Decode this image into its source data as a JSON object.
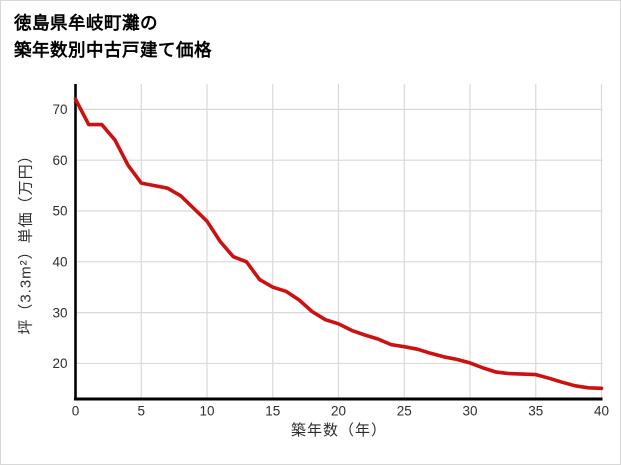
{
  "page": {
    "background": "#ffffff",
    "border_color": "#d8d8d8"
  },
  "chart_data": {
    "type": "line",
    "title": "徳島県牟岐町灘の 築年数別中古戸建て価格",
    "title_lines": [
      "徳島県牟岐町灘の",
      "築年数別中古戸建て価格"
    ],
    "xlabel": "築年数（年）",
    "ylabel": "坪（3.3m²）単価（万円）",
    "x": [
      0,
      1,
      2,
      3,
      4,
      5,
      6,
      7,
      8,
      9,
      10,
      11,
      12,
      13,
      14,
      15,
      16,
      17,
      18,
      19,
      20,
      21,
      22,
      23,
      24,
      25,
      26,
      27,
      28,
      29,
      30,
      31,
      32,
      33,
      34,
      35,
      36,
      37,
      38,
      39,
      40
    ],
    "values": [
      72,
      67,
      67,
      64,
      59,
      55.5,
      55,
      54.5,
      53,
      50.5,
      48,
      44,
      41,
      40,
      36.5,
      35,
      34.2,
      32.5,
      30.2,
      28.6,
      27.8,
      26.5,
      25.6,
      24.8,
      23.7,
      23.3,
      22.8,
      22,
      21.3,
      20.8,
      20.1,
      19.1,
      18.3,
      18,
      17.9,
      17.8,
      17.1,
      16.3,
      15.6,
      15.2,
      15.1
    ],
    "xticks": [
      0,
      5,
      10,
      15,
      20,
      25,
      30,
      35,
      40
    ],
    "yticks": [
      20,
      30,
      40,
      50,
      60,
      70
    ],
    "xlim": [
      0,
      40
    ],
    "ylim": [
      13,
      75
    ],
    "grid": true,
    "legend": false,
    "line_color": "#cc1111",
    "line_width": 3.6,
    "gridline_color": "#d9d9d9",
    "axis_color": "#000000",
    "tick_label_color": "#2e2e2e",
    "tick_font_size": 13.5
  }
}
